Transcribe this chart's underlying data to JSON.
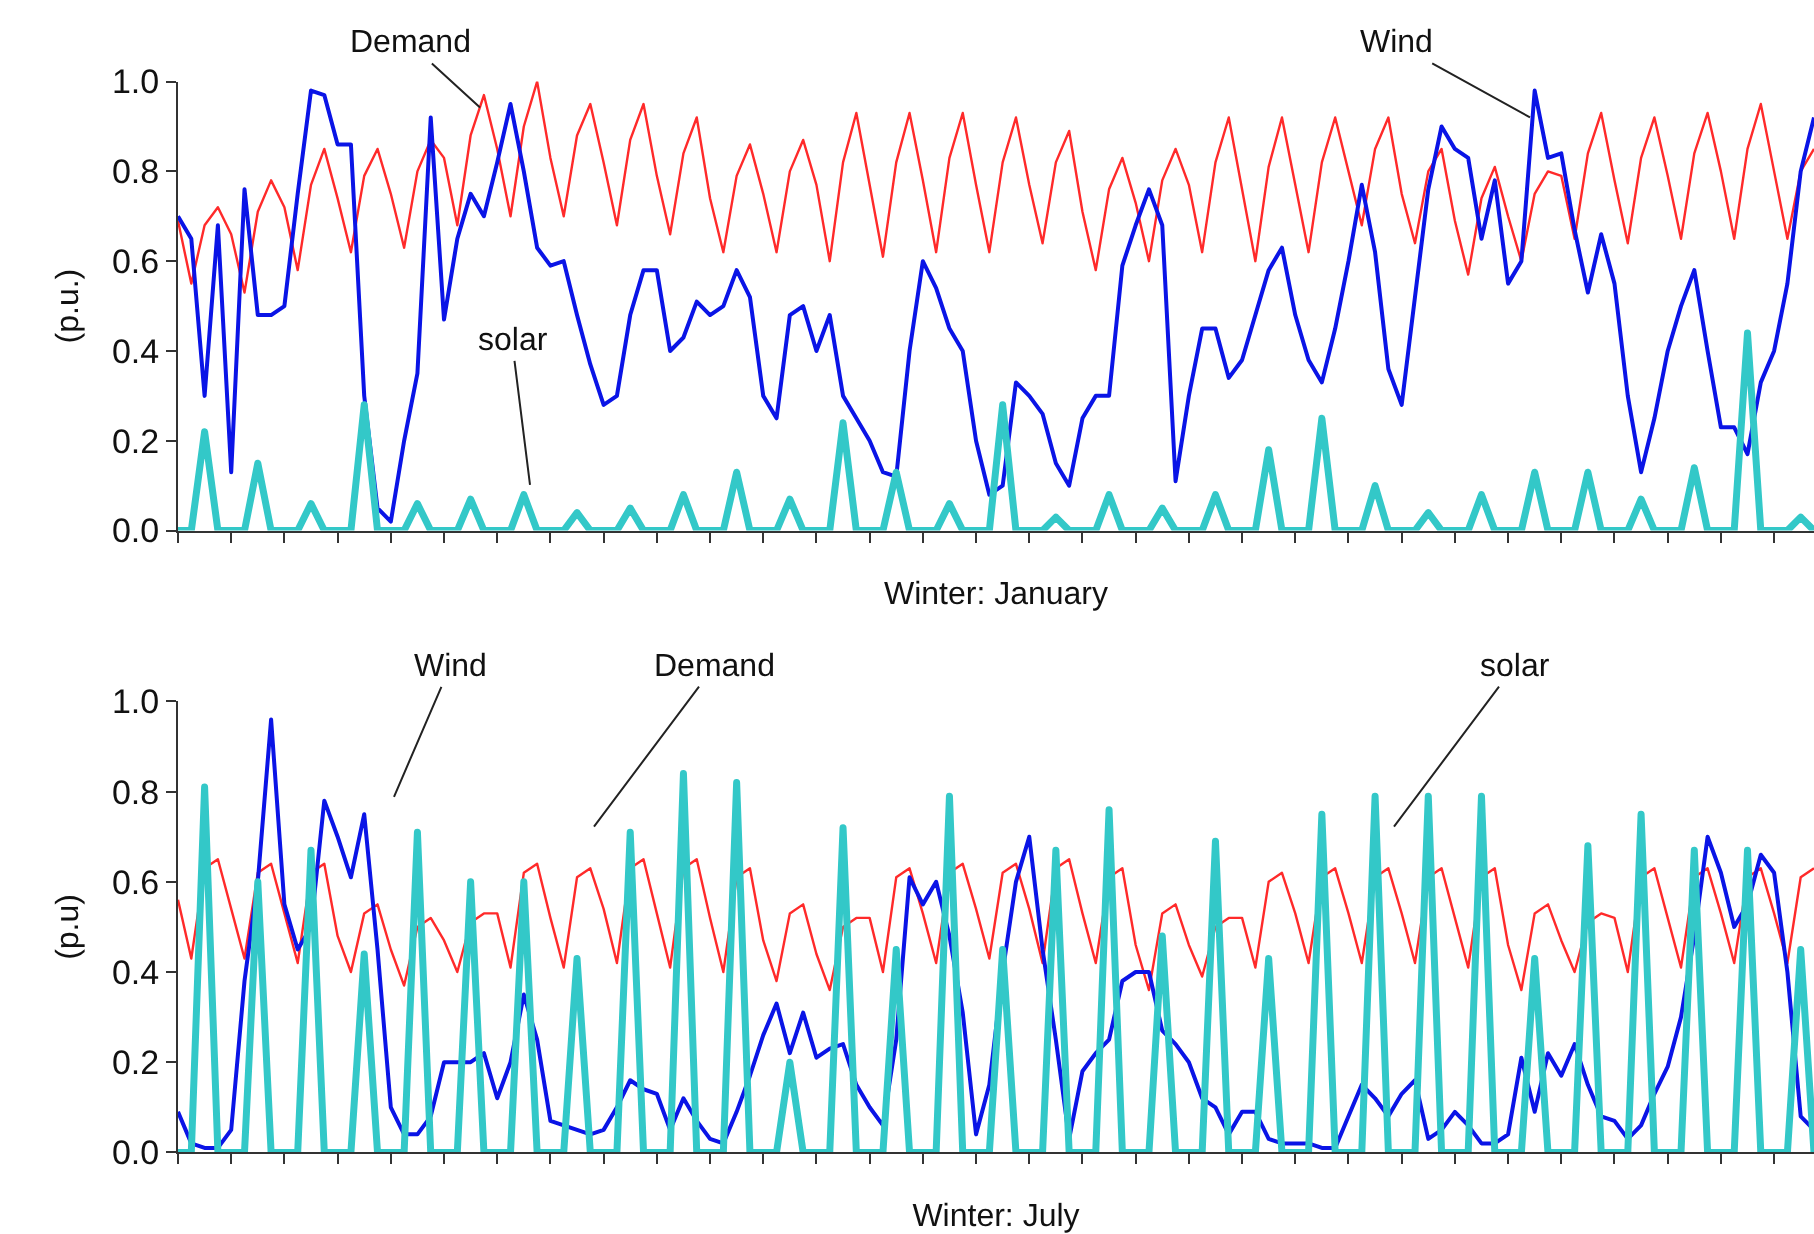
{
  "chart_data": [
    {
      "type": "line",
      "xlabel": "Winter: January",
      "ylabel": "(p.u.)",
      "ylim": [
        0,
        1
      ],
      "yticks": [
        {
          "value": 0,
          "label": "0.0"
        },
        {
          "value": 0.2,
          "label": "0.2"
        },
        {
          "value": 0.4,
          "label": "0.4"
        },
        {
          "value": 0.6,
          "label": "0.6"
        },
        {
          "value": 0.8,
          "label": "0.8"
        },
        {
          "value": 1,
          "label": "1.0"
        }
      ],
      "categories": [
        null,
        null,
        null,
        null,
        null,
        null,
        null,
        null,
        null,
        null,
        null,
        null,
        null,
        null,
        null,
        null,
        null,
        null,
        null,
        null,
        null,
        null,
        null,
        null,
        null,
        null,
        null,
        null,
        null,
        null,
        null,
        null,
        null,
        null,
        null,
        null,
        null,
        null,
        null,
        null,
        null,
        null,
        null,
        null,
        null,
        null,
        null,
        null,
        null,
        null,
        null,
        null,
        null,
        null,
        null,
        null,
        null,
        null,
        null,
        null,
        null,
        null,
        null,
        null,
        null,
        null,
        null,
        null,
        null,
        null,
        null,
        null,
        null,
        null,
        null,
        null,
        null,
        null,
        null,
        null,
        null,
        null,
        null,
        null,
        null,
        null,
        null,
        null,
        null,
        null,
        null,
        null,
        null,
        null,
        null,
        null,
        null,
        null,
        null,
        null,
        null,
        null,
        null,
        null,
        null,
        null,
        null,
        null,
        null,
        null,
        null,
        null,
        null,
        null,
        null,
        null,
        null,
        null,
        null,
        null,
        null,
        null,
        null,
        null
      ],
      "tick_labels": "y",
      "line_style": "solid",
      "annotations": [
        "Demand",
        "Wind",
        "solar"
      ],
      "series": [
        {
          "color": "#ff2a2a",
          "values": [
            0.69,
            0.55,
            0.68,
            0.72,
            0.66,
            0.53,
            0.71,
            0.78,
            0.72,
            0.58,
            0.77,
            0.85,
            0.74,
            0.62,
            0.79,
            0.85,
            0.75,
            0.63,
            0.8,
            0.87,
            0.83,
            0.68,
            0.88,
            0.97,
            0.85,
            0.7,
            0.9,
            1.0,
            0.83,
            0.7,
            0.88,
            0.95,
            0.82,
            0.68,
            0.87,
            0.95,
            0.79,
            0.66,
            0.84,
            0.92,
            0.74,
            0.62,
            0.79,
            0.86,
            0.75,
            0.62,
            0.8,
            0.87,
            0.77,
            0.6,
            0.82,
            0.93,
            0.77,
            0.61,
            0.82,
            0.93,
            0.78,
            0.62,
            0.83,
            0.93,
            0.77,
            0.62,
            0.82,
            0.92,
            0.77,
            0.64,
            0.82,
            0.89,
            0.71,
            0.58,
            0.76,
            0.83,
            0.73,
            0.6,
            0.78,
            0.85,
            0.77,
            0.62,
            0.82,
            0.92,
            0.76,
            0.6,
            0.81,
            0.92,
            0.77,
            0.62,
            0.82,
            0.92,
            0.8,
            0.68,
            0.85,
            0.92,
            0.75,
            0.64,
            0.8,
            0.85,
            0.69,
            0.57,
            0.74,
            0.81,
            0.7,
            0.6,
            0.75,
            0.8,
            0.79,
            0.65,
            0.84,
            0.93,
            0.78,
            0.64,
            0.83,
            0.92,
            0.79,
            0.65,
            0.84,
            0.93,
            0.8,
            0.65,
            0.85,
            0.95,
            0.8,
            0.65,
            0.8,
            0.85
          ]
        },
        {
          "color": "#0a14e6",
          "values": [
            0.7,
            0.65,
            0.3,
            0.68,
            0.13,
            0.76,
            0.48,
            0.48,
            0.5,
            0.75,
            0.98,
            0.97,
            0.86,
            0.86,
            0.3,
            0.05,
            0.02,
            0.2,
            0.35,
            0.92,
            0.47,
            0.65,
            0.75,
            0.7,
            0.82,
            0.95,
            0.8,
            0.63,
            0.59,
            0.6,
            0.48,
            0.37,
            0.28,
            0.3,
            0.48,
            0.58,
            0.58,
            0.4,
            0.43,
            0.51,
            0.48,
            0.5,
            0.58,
            0.52,
            0.3,
            0.25,
            0.48,
            0.5,
            0.4,
            0.48,
            0.3,
            0.25,
            0.2,
            0.13,
            0.12,
            0.4,
            0.6,
            0.54,
            0.45,
            0.4,
            0.2,
            0.08,
            0.1,
            0.33,
            0.3,
            0.26,
            0.15,
            0.1,
            0.25,
            0.3,
            0.3,
            0.59,
            0.68,
            0.76,
            0.68,
            0.11,
            0.3,
            0.45,
            0.45,
            0.34,
            0.38,
            0.48,
            0.58,
            0.63,
            0.48,
            0.38,
            0.33,
            0.45,
            0.6,
            0.77,
            0.62,
            0.36,
            0.28,
            0.52,
            0.76,
            0.9,
            0.85,
            0.83,
            0.65,
            0.78,
            0.55,
            0.6,
            0.98,
            0.83,
            0.84,
            0.67,
            0.53,
            0.66,
            0.55,
            0.3,
            0.13,
            0.25,
            0.4,
            0.5,
            0.58,
            0.4,
            0.23,
            0.23,
            0.17,
            0.33,
            0.4,
            0.55,
            0.8,
            0.92
          ]
        },
        {
          "color": "#33c8c8",
          "values": [
            0,
            0,
            0.22,
            0,
            0,
            0,
            0.15,
            0,
            0,
            0,
            0.06,
            0,
            0,
            0,
            0.28,
            0,
            0,
            0,
            0.06,
            0,
            0,
            0,
            0.07,
            0,
            0,
            0,
            0.08,
            0,
            0,
            0,
            0.04,
            0,
            0,
            0,
            0.05,
            0,
            0,
            0,
            0.08,
            0,
            0,
            0,
            0.13,
            0,
            0,
            0,
            0.07,
            0,
            0,
            0,
            0.24,
            0,
            0,
            0,
            0.13,
            0,
            0,
            0,
            0.06,
            0,
            0,
            0,
            0.28,
            0,
            0,
            0,
            0.03,
            0,
            0,
            0,
            0.08,
            0,
            0,
            0,
            0.05,
            0,
            0,
            0,
            0.08,
            0,
            0,
            0,
            0.18,
            0,
            0,
            0,
            0.25,
            0,
            0,
            0,
            0.1,
            0,
            0,
            0,
            0.04,
            0,
            0,
            0,
            0.08,
            0,
            0,
            0,
            0.13,
            0,
            0,
            0,
            0.13,
            0,
            0,
            0,
            0.07,
            0,
            0,
            0,
            0.14,
            0,
            0,
            0,
            0.44,
            0,
            0,
            0,
            0.03,
            0
          ]
        }
      ]
    },
    {
      "type": "line",
      "xlabel": "Winter: July",
      "ylabel": "(p.u)",
      "ylim": [
        0,
        1
      ],
      "yticks": [
        {
          "value": 0,
          "label": "0.0"
        },
        {
          "value": 0.2,
          "label": "0.2"
        },
        {
          "value": 0.4,
          "label": "0.4"
        },
        {
          "value": 0.6,
          "label": "0.6"
        },
        {
          "value": 0.8,
          "label": "0.8"
        },
        {
          "value": 1,
          "label": "1.0"
        }
      ],
      "categories": [
        null,
        null,
        null,
        null,
        null,
        null,
        null,
        null,
        null,
        null,
        null,
        null,
        null,
        null,
        null,
        null,
        null,
        null,
        null,
        null,
        null,
        null,
        null,
        null,
        null,
        null,
        null,
        null,
        null,
        null,
        null,
        null,
        null,
        null,
        null,
        null,
        null,
        null,
        null,
        null,
        null,
        null,
        null,
        null,
        null,
        null,
        null,
        null,
        null,
        null,
        null,
        null,
        null,
        null,
        null,
        null,
        null,
        null,
        null,
        null,
        null,
        null,
        null,
        null,
        null,
        null,
        null,
        null,
        null,
        null,
        null,
        null,
        null,
        null,
        null,
        null,
        null,
        null,
        null,
        null,
        null,
        null,
        null,
        null,
        null,
        null,
        null,
        null,
        null,
        null,
        null,
        null,
        null,
        null,
        null,
        null,
        null,
        null,
        null,
        null,
        null,
        null,
        null,
        null,
        null,
        null,
        null,
        null,
        null,
        null,
        null,
        null,
        null,
        null,
        null,
        null,
        null,
        null,
        null,
        null,
        null,
        null,
        null,
        null
      ],
      "tick_labels": "y",
      "line_style": "solid",
      "annotations": [
        "Wind",
        "Demand",
        "solar"
      ],
      "series": [
        {
          "color": "#ff2a2a",
          "values": [
            0.56,
            0.43,
            0.63,
            0.65,
            0.54,
            0.43,
            0.62,
            0.64,
            0.53,
            0.42,
            0.62,
            0.64,
            0.48,
            0.4,
            0.53,
            0.55,
            0.45,
            0.37,
            0.5,
            0.52,
            0.47,
            0.4,
            0.51,
            0.53,
            0.53,
            0.41,
            0.62,
            0.64,
            0.52,
            0.41,
            0.61,
            0.63,
            0.54,
            0.42,
            0.63,
            0.65,
            0.53,
            0.41,
            0.63,
            0.65,
            0.52,
            0.4,
            0.61,
            0.63,
            0.47,
            0.38,
            0.53,
            0.55,
            0.44,
            0.36,
            0.5,
            0.52,
            0.52,
            0.4,
            0.61,
            0.63,
            0.53,
            0.42,
            0.62,
            0.64,
            0.54,
            0.43,
            0.62,
            0.64,
            0.54,
            0.42,
            0.63,
            0.65,
            0.53,
            0.42,
            0.61,
            0.63,
            0.46,
            0.36,
            0.53,
            0.55,
            0.46,
            0.39,
            0.5,
            0.52,
            0.52,
            0.41,
            0.6,
            0.62,
            0.53,
            0.42,
            0.61,
            0.63,
            0.53,
            0.42,
            0.61,
            0.63,
            0.53,
            0.42,
            0.61,
            0.63,
            0.52,
            0.41,
            0.61,
            0.63,
            0.46,
            0.36,
            0.53,
            0.55,
            0.47,
            0.4,
            0.51,
            0.53,
            0.52,
            0.4,
            0.61,
            0.63,
            0.52,
            0.41,
            0.61,
            0.63,
            0.53,
            0.42,
            0.61,
            0.63,
            0.53,
            0.42,
            0.61,
            0.63
          ]
        },
        {
          "color": "#0a14e6",
          "values": [
            0.09,
            0.02,
            0.01,
            0.01,
            0.05,
            0.38,
            0.6,
            0.96,
            0.55,
            0.45,
            0.5,
            0.78,
            0.7,
            0.61,
            0.75,
            0.45,
            0.1,
            0.04,
            0.04,
            0.08,
            0.2,
            0.2,
            0.2,
            0.22,
            0.12,
            0.2,
            0.35,
            0.25,
            0.07,
            0.06,
            0.05,
            0.04,
            0.05,
            0.1,
            0.16,
            0.14,
            0.13,
            0.05,
            0.12,
            0.07,
            0.03,
            0.02,
            0.09,
            0.17,
            0.26,
            0.33,
            0.22,
            0.31,
            0.21,
            0.23,
            0.24,
            0.15,
            0.1,
            0.06,
            0.25,
            0.61,
            0.55,
            0.6,
            0.48,
            0.31,
            0.04,
            0.15,
            0.4,
            0.6,
            0.7,
            0.45,
            0.25,
            0.03,
            0.18,
            0.22,
            0.25,
            0.38,
            0.4,
            0.4,
            0.27,
            0.24,
            0.2,
            0.12,
            0.1,
            0.04,
            0.09,
            0.09,
            0.03,
            0.02,
            0.02,
            0.02,
            0.01,
            0.01,
            0.08,
            0.15,
            0.12,
            0.08,
            0.13,
            0.16,
            0.03,
            0.05,
            0.09,
            0.06,
            0.02,
            0.02,
            0.04,
            0.21,
            0.09,
            0.22,
            0.17,
            0.24,
            0.15,
            0.08,
            0.07,
            0.03,
            0.06,
            0.13,
            0.19,
            0.3,
            0.48,
            0.7,
            0.62,
            0.5,
            0.55,
            0.66,
            0.62,
            0.4,
            0.08,
            0.05
          ]
        },
        {
          "color": "#33c8c8",
          "values": [
            0,
            0,
            0.81,
            0,
            0,
            0,
            0.6,
            0,
            0,
            0,
            0.67,
            0,
            0,
            0,
            0.44,
            0,
            0,
            0,
            0.71,
            0,
            0,
            0,
            0.6,
            0,
            0,
            0,
            0.6,
            0,
            0,
            0,
            0.43,
            0,
            0,
            0,
            0.71,
            0,
            0,
            0,
            0.84,
            0,
            0,
            0,
            0.82,
            0,
            0,
            0,
            0.2,
            0,
            0,
            0,
            0.72,
            0,
            0,
            0,
            0.45,
            0,
            0,
            0,
            0.79,
            0,
            0,
            0,
            0.45,
            0,
            0,
            0,
            0.67,
            0,
            0,
            0,
            0.76,
            0,
            0,
            0,
            0.48,
            0,
            0,
            0,
            0.69,
            0,
            0,
            0,
            0.43,
            0,
            0,
            0,
            0.75,
            0,
            0,
            0,
            0.79,
            0,
            0,
            0,
            0.79,
            0,
            0,
            0,
            0.79,
            0,
            0,
            0,
            0.43,
            0,
            0,
            0,
            0.68,
            0,
            0,
            0,
            0.75,
            0,
            0,
            0,
            0.67,
            0,
            0,
            0,
            0.67,
            0,
            0,
            0,
            0.45,
            0
          ]
        }
      ]
    }
  ]
}
